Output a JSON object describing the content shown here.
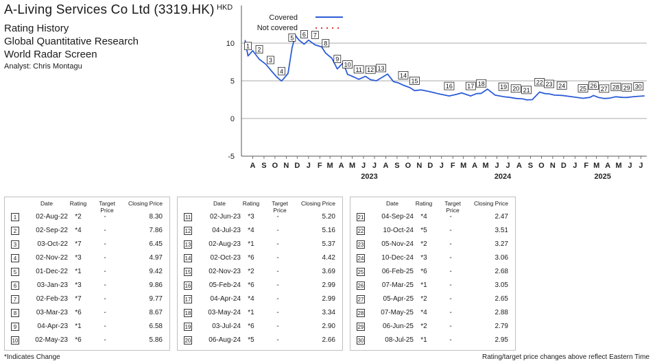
{
  "header": {
    "company": "A-Living Services Co Ltd (3319.HK)",
    "line1": "Rating History",
    "line2": "Global Quantitative Research",
    "line3": "World Radar Screen",
    "analyst": "Analyst: Chris Montagu"
  },
  "chart_data": {
    "type": "line",
    "ylabel": "HKD",
    "ylim": [
      -5,
      15
    ],
    "yticks": [
      -5,
      0,
      5,
      10
    ],
    "grid": "horizontal",
    "legend_position": "top-left",
    "month_ticks": [
      "A",
      "S",
      "O",
      "N",
      "D",
      "J",
      "F",
      "M",
      "A",
      "M",
      "J",
      "J",
      "A",
      "S",
      "O",
      "N",
      "D",
      "J",
      "F",
      "M",
      "A",
      "M",
      "J",
      "J",
      "A",
      "S",
      "O",
      "N",
      "D",
      "J",
      "F",
      "M",
      "A",
      "M",
      "J",
      "J"
    ],
    "year_labels": [
      {
        "label": "2023",
        "at": "2023-07"
      },
      {
        "label": "2024",
        "at": "2024-07"
      },
      {
        "label": "2025",
        "at": "2025-04"
      }
    ],
    "series": [
      {
        "name": "Covered",
        "color": "#2b5bd7",
        "style": "solid",
        "x": [
          "2022-07-25",
          "2022-08-02",
          "2022-08-15",
          "2022-09-02",
          "2022-09-20",
          "2022-10-03",
          "2022-10-20",
          "2022-11-02",
          "2022-11-10",
          "2022-11-20",
          "2022-12-01",
          "2022-12-10",
          "2022-12-20",
          "2023-01-03",
          "2023-01-15",
          "2023-02-02",
          "2023-02-20",
          "2023-03-03",
          "2023-03-20",
          "2023-04-04",
          "2023-04-20",
          "2023-05-02",
          "2023-05-20",
          "2023-06-02",
          "2023-06-20",
          "2023-07-04",
          "2023-07-20",
          "2023-08-02",
          "2023-08-20",
          "2023-09-05",
          "2023-09-20",
          "2023-10-02",
          "2023-10-20",
          "2023-11-02",
          "2023-11-20",
          "2023-12-10",
          "2024-01-05",
          "2024-02-05",
          "2024-02-25",
          "2024-03-10",
          "2024-04-04",
          "2024-04-20",
          "2024-05-03",
          "2024-05-20",
          "2024-06-10",
          "2024-07-03",
          "2024-07-20",
          "2024-08-06",
          "2024-08-25",
          "2024-09-04",
          "2024-09-20",
          "2024-10-10",
          "2024-10-25",
          "2024-11-05",
          "2024-11-20",
          "2024-12-10",
          "2025-01-05",
          "2025-02-06",
          "2025-02-25",
          "2025-03-07",
          "2025-03-20",
          "2025-04-05",
          "2025-04-20",
          "2025-05-07",
          "2025-05-25",
          "2025-06-06",
          "2025-06-25",
          "2025-07-08",
          "2025-07-25"
        ],
        "y": [
          10.4,
          8.3,
          9.0,
          7.86,
          7.2,
          6.45,
          5.5,
          4.97,
          5.4,
          6.0,
          9.42,
          11.0,
          10.4,
          9.86,
          10.4,
          9.77,
          9.5,
          8.67,
          8.0,
          6.58,
          7.4,
          5.86,
          5.5,
          5.2,
          5.6,
          5.16,
          5.0,
          5.37,
          5.9,
          4.9,
          4.7,
          4.42,
          4.1,
          3.69,
          3.8,
          3.6,
          3.3,
          2.99,
          3.2,
          3.4,
          2.99,
          3.3,
          3.34,
          3.9,
          3.1,
          2.9,
          2.8,
          2.66,
          2.6,
          2.47,
          2.5,
          3.51,
          3.3,
          3.27,
          3.1,
          3.06,
          2.9,
          2.68,
          2.8,
          3.05,
          2.8,
          2.65,
          2.7,
          2.88,
          2.8,
          2.79,
          2.9,
          2.95,
          3.0
        ]
      },
      {
        "name": "Not covered",
        "color": "#e0322b",
        "style": "dotted",
        "x": [],
        "y": []
      }
    ],
    "markers": [
      {
        "n": 1,
        "date": "2022-08-02",
        "value": 8.3
      },
      {
        "n": 2,
        "date": "2022-09-02",
        "value": 7.86
      },
      {
        "n": 3,
        "date": "2022-10-03",
        "value": 6.45
      },
      {
        "n": 4,
        "date": "2022-11-02",
        "value": 4.97
      },
      {
        "n": 5,
        "date": "2022-12-01",
        "value": 9.42
      },
      {
        "n": 6,
        "date": "2023-01-03",
        "value": 9.86
      },
      {
        "n": 7,
        "date": "2023-02-02",
        "value": 9.77
      },
      {
        "n": 8,
        "date": "2023-03-03",
        "value": 8.67
      },
      {
        "n": 9,
        "date": "2023-04-04",
        "value": 6.58
      },
      {
        "n": 10,
        "date": "2023-05-02",
        "value": 5.86
      },
      {
        "n": 11,
        "date": "2023-06-02",
        "value": 5.2
      },
      {
        "n": 12,
        "date": "2023-07-04",
        "value": 5.16
      },
      {
        "n": 13,
        "date": "2023-08-02",
        "value": 5.37
      },
      {
        "n": 14,
        "date": "2023-10-02",
        "value": 4.42
      },
      {
        "n": 15,
        "date": "2023-11-02",
        "value": 3.69
      },
      {
        "n": 16,
        "date": "2024-02-05",
        "value": 2.99
      },
      {
        "n": 17,
        "date": "2024-04-04",
        "value": 2.99
      },
      {
        "n": 18,
        "date": "2024-05-03",
        "value": 3.34
      },
      {
        "n": 19,
        "date": "2024-07-03",
        "value": 2.9
      },
      {
        "n": 20,
        "date": "2024-08-06",
        "value": 2.66
      },
      {
        "n": 21,
        "date": "2024-09-04",
        "value": 2.47
      },
      {
        "n": 22,
        "date": "2024-10-10",
        "value": 3.51
      },
      {
        "n": 23,
        "date": "2024-11-05",
        "value": 3.27
      },
      {
        "n": 24,
        "date": "2024-12-10",
        "value": 3.06
      },
      {
        "n": 25,
        "date": "2025-02-06",
        "value": 2.68
      },
      {
        "n": 26,
        "date": "2025-03-07",
        "value": 3.05
      },
      {
        "n": 27,
        "date": "2025-04-05",
        "value": 2.65
      },
      {
        "n": 28,
        "date": "2025-05-07",
        "value": 2.88
      },
      {
        "n": 29,
        "date": "2025-06-06",
        "value": 2.79
      },
      {
        "n": 30,
        "date": "2025-07-08",
        "value": 2.95
      }
    ]
  },
  "table": {
    "headers": {
      "date": "Date",
      "rating": "Rating",
      "target": "Target Price",
      "closing": "Closing Price"
    },
    "rows": [
      {
        "n": "1",
        "date": "02-Aug-22",
        "rating": "*2",
        "target": "-",
        "closing": "8.30"
      },
      {
        "n": "2",
        "date": "02-Sep-22",
        "rating": "*4",
        "target": "-",
        "closing": "7.86"
      },
      {
        "n": "3",
        "date": "03-Oct-22",
        "rating": "*7",
        "target": "-",
        "closing": "6.45"
      },
      {
        "n": "4",
        "date": "02-Nov-22",
        "rating": "*3",
        "target": "-",
        "closing": "4.97"
      },
      {
        "n": "5",
        "date": "01-Dec-22",
        "rating": "*1",
        "target": "-",
        "closing": "9.42"
      },
      {
        "n": "6",
        "date": "03-Jan-23",
        "rating": "*3",
        "target": "-",
        "closing": "9.86"
      },
      {
        "n": "7",
        "date": "02-Feb-23",
        "rating": "*7",
        "target": "-",
        "closing": "9.77"
      },
      {
        "n": "8",
        "date": "03-Mar-23",
        "rating": "*6",
        "target": "-",
        "closing": "8.67"
      },
      {
        "n": "9",
        "date": "04-Apr-23",
        "rating": "*1",
        "target": "-",
        "closing": "6.58"
      },
      {
        "n": "10",
        "date": "02-May-23",
        "rating": "*6",
        "target": "-",
        "closing": "5.86"
      },
      {
        "n": "11",
        "date": "02-Jun-23",
        "rating": "*3",
        "target": "-",
        "closing": "5.20"
      },
      {
        "n": "12",
        "date": "04-Jul-23",
        "rating": "*4",
        "target": "-",
        "closing": "5.16"
      },
      {
        "n": "13",
        "date": "02-Aug-23",
        "rating": "*1",
        "target": "-",
        "closing": "5.37"
      },
      {
        "n": "14",
        "date": "02-Oct-23",
        "rating": "*6",
        "target": "-",
        "closing": "4.42"
      },
      {
        "n": "15",
        "date": "02-Nov-23",
        "rating": "*2",
        "target": "-",
        "closing": "3.69"
      },
      {
        "n": "16",
        "date": "05-Feb-24",
        "rating": "*6",
        "target": "-",
        "closing": "2.99"
      },
      {
        "n": "17",
        "date": "04-Apr-24",
        "rating": "*4",
        "target": "-",
        "closing": "2.99"
      },
      {
        "n": "18",
        "date": "03-May-24",
        "rating": "*1",
        "target": "-",
        "closing": "3.34"
      },
      {
        "n": "19",
        "date": "03-Jul-24",
        "rating": "*6",
        "target": "-",
        "closing": "2.90"
      },
      {
        "n": "20",
        "date": "06-Aug-24",
        "rating": "*5",
        "target": "-",
        "closing": "2.66"
      },
      {
        "n": "21",
        "date": "04-Sep-24",
        "rating": "*4",
        "target": "-",
        "closing": "2.47"
      },
      {
        "n": "22",
        "date": "10-Oct-24",
        "rating": "*5",
        "target": "-",
        "closing": "3.51"
      },
      {
        "n": "23",
        "date": "05-Nov-24",
        "rating": "*2",
        "target": "-",
        "closing": "3.27"
      },
      {
        "n": "24",
        "date": "10-Dec-24",
        "rating": "*3",
        "target": "-",
        "closing": "3.06"
      },
      {
        "n": "25",
        "date": "06-Feb-25",
        "rating": "*6",
        "target": "-",
        "closing": "2.68"
      },
      {
        "n": "26",
        "date": "07-Mar-25",
        "rating": "*1",
        "target": "-",
        "closing": "3.05"
      },
      {
        "n": "27",
        "date": "05-Apr-25",
        "rating": "*2",
        "target": "-",
        "closing": "2.65"
      },
      {
        "n": "28",
        "date": "07-May-25",
        "rating": "*4",
        "target": "-",
        "closing": "2.88"
      },
      {
        "n": "29",
        "date": "06-Jun-25",
        "rating": "*2",
        "target": "-",
        "closing": "2.79"
      },
      {
        "n": "30",
        "date": "08-Jul-25",
        "rating": "*1",
        "target": "-",
        "closing": "2.95"
      }
    ]
  },
  "footer": {
    "left": "*Indicates Change",
    "right": "Rating/target price changes above reflect Eastern Time"
  }
}
